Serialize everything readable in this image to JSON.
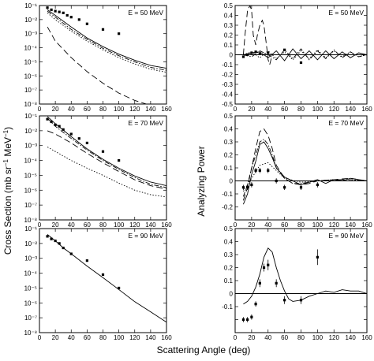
{
  "figure": {
    "xlabel": "Scattering Angle (deg)",
    "ylabel_left_main": "Cross Section (mb sr",
    "ylabel_left_exp": "−1",
    "ylabel_left_mid": " MeV",
    "ylabel_left_exp2": "−1",
    "ylabel_left_end": ")",
    "ylabel_right": "Analyzing Power"
  },
  "chart_data": [
    {
      "type": "line",
      "id": "cs50",
      "label": "E = 50 MeV",
      "ylog": true,
      "ylim": [
        1e-08,
        0.1
      ],
      "xlim": [
        0,
        160
      ],
      "xticks": [
        0,
        20,
        40,
        60,
        80,
        100,
        120,
        140,
        160
      ],
      "yticks": [
        1e-08,
        1e-07,
        1e-06,
        1e-05,
        0.0001,
        0.001,
        0.01,
        0.1
      ],
      "yticklabels": [
        "10⁻⁸",
        "10⁻⁷",
        "10⁻⁶",
        "10⁻⁵",
        "10⁻⁴",
        "10⁻³",
        "10⁻²",
        "10⁻¹"
      ],
      "series": [
        {
          "style": "solid",
          "x": [
            10,
            20,
            40,
            60,
            80,
            100,
            120,
            140,
            160
          ],
          "y": [
            0.05,
            0.02,
            0.003,
            0.0005,
            0.00012,
            3.5e-05,
            1.3e-05,
            5.5e-06,
            3.5e-06
          ]
        },
        {
          "style": "dashdot",
          "x": [
            10,
            20,
            40,
            60,
            80,
            100,
            120,
            140,
            160
          ],
          "y": [
            0.04,
            0.015,
            0.002,
            0.0004,
            9e-05,
            2.7e-05,
            1e-05,
            4e-06,
            2.5e-06
          ]
        },
        {
          "style": "dotted",
          "x": [
            10,
            20,
            40,
            60,
            80,
            100,
            120,
            140,
            160
          ],
          "y": [
            0.03,
            0.01,
            0.0015,
            0.0003,
            7e-05,
            2e-05,
            7e-06,
            3e-06,
            1.8e-06
          ]
        },
        {
          "style": "dashed",
          "x": [
            10,
            20,
            40,
            60,
            80,
            100,
            120,
            140,
            160
          ],
          "y": [
            0.003,
            0.0003,
            2e-05,
            2e-06,
            3e-07,
            6e-08,
            1.8e-08,
            8e-09,
            6e-09
          ]
        }
      ],
      "points": {
        "x": [
          10,
          15,
          20,
          25,
          30,
          35,
          40,
          50,
          60,
          80,
          100
        ],
        "y": [
          0.07,
          0.05,
          0.04,
          0.035,
          0.03,
          0.02,
          0.015,
          0.01,
          0.005,
          0.002,
          0.001
        ]
      }
    },
    {
      "type": "line",
      "id": "ap50",
      "label": "E = 50 MeV",
      "ylim": [
        -0.5,
        0.5
      ],
      "xlim": [
        0,
        160
      ],
      "xticks": [
        0,
        20,
        40,
        60,
        80,
        100,
        120,
        140,
        160
      ],
      "yticks": [
        -0.5,
        -0.4,
        -0.3,
        -0.2,
        -0.1,
        0,
        0.1,
        0.2,
        0.3,
        0.4,
        0.5
      ],
      "yticklabels": [
        "-0.5",
        "-0.4",
        "-0.3",
        "-0.2",
        "-0.1",
        "0",
        "0.1",
        "0.2",
        "0.3",
        "0.4",
        "0.5"
      ],
      "series": [
        {
          "style": "dashed",
          "x": [
            10,
            12,
            15,
            18,
            20,
            22,
            25,
            27,
            30,
            33,
            35,
            38,
            40,
            42,
            45,
            50,
            60
          ],
          "y": [
            0,
            0.2,
            0.45,
            0.5,
            0.45,
            0.2,
            0.1,
            0.2,
            0.3,
            0.35,
            0.3,
            0.1,
            -0.05,
            -0.1,
            0,
            0,
            0
          ]
        },
        {
          "style": "solid",
          "x": [
            10,
            20,
            30,
            40,
            50,
            60,
            70,
            80,
            90,
            100,
            110,
            120,
            130,
            140,
            150,
            160
          ],
          "y": [
            0,
            0.02,
            0.03,
            -0.03,
            0.04,
            -0.06,
            0.06,
            -0.04,
            0.04,
            -0.05,
            0.04,
            -0.04,
            0.03,
            -0.03,
            0.02,
            0
          ]
        },
        {
          "style": "dashdot",
          "x": [
            10,
            20,
            30,
            40,
            50,
            60,
            70,
            80,
            90,
            100,
            110,
            120,
            130,
            140,
            150,
            160
          ],
          "y": [
            0,
            -0.02,
            0.04,
            0,
            -0.05,
            0.05,
            -0.04,
            0.06,
            -0.05,
            0.04,
            -0.04,
            0.05,
            -0.03,
            0.03,
            -0.02,
            0
          ]
        },
        {
          "style": "dotted",
          "x": [
            10,
            20,
            30,
            40,
            50,
            60,
            70,
            80,
            90,
            100,
            110,
            120,
            130,
            140,
            150,
            160
          ],
          "y": [
            0,
            0.03,
            -0.03,
            0.04,
            -0.04,
            0.03,
            -0.05,
            0.04,
            -0.04,
            0.05,
            -0.03,
            0.04,
            -0.02,
            0.03,
            -0.02,
            0
          ]
        }
      ],
      "points": {
        "x": [
          10,
          15,
          20,
          25,
          30,
          40,
          60,
          80
        ],
        "y": [
          -0.02,
          0,
          0.02,
          0.03,
          0.01,
          0.02,
          0.05,
          -0.08
        ]
      }
    },
    {
      "type": "line",
      "id": "cs70",
      "label": "E = 70 MeV",
      "ylog": true,
      "ylim": [
        1e-08,
        0.1
      ],
      "xlim": [
        0,
        160
      ],
      "xticks": [
        0,
        20,
        40,
        60,
        80,
        100,
        120,
        140,
        160
      ],
      "yticks": [
        1e-08,
        1e-07,
        1e-06,
        1e-05,
        0.0001,
        0.001,
        0.01,
        0.1
      ],
      "yticklabels": [
        "10⁻⁸",
        "10⁻⁷",
        "10⁻⁶",
        "10⁻⁵",
        "10⁻⁴",
        "10⁻³",
        "10⁻²",
        "10⁻¹"
      ],
      "series": [
        {
          "style": "solid",
          "x": [
            10,
            20,
            40,
            60,
            80,
            100,
            120,
            140,
            160
          ],
          "y": [
            0.09,
            0.03,
            0.004,
            0.0006,
            0.00012,
            3e-05,
            9e-06,
            3.5e-06,
            2e-06
          ]
        },
        {
          "style": "dashdot",
          "x": [
            10,
            20,
            40,
            60,
            80,
            100,
            120,
            140,
            160
          ],
          "y": [
            0.07,
            0.02,
            0.003,
            0.0005,
            0.0001,
            2.5e-05,
            7e-06,
            2.5e-06,
            1.5e-06
          ]
        },
        {
          "style": "dashed",
          "x": [
            10,
            20,
            40,
            60,
            80,
            100,
            120,
            140,
            160
          ],
          "y": [
            0.01,
            0.006,
            0.0015,
            0.0003,
            7e-05,
            1.8e-05,
            5e-06,
            2e-06,
            1.2e-06
          ]
        },
        {
          "style": "dotted",
          "x": [
            10,
            20,
            40,
            60,
            80,
            100,
            120,
            140,
            160
          ],
          "y": [
            0.0008,
            0.0004,
            0.0001,
            3e-05,
            1e-05,
            3e-06,
            1e-06,
            5e-07,
            3.5e-07
          ]
        }
      ],
      "points": {
        "x": [
          10,
          15,
          20,
          25,
          30,
          40,
          50,
          60,
          80,
          100
        ],
        "y": [
          0.06,
          0.04,
          0.025,
          0.02,
          0.012,
          0.006,
          0.003,
          0.0015,
          0.0004,
          0.0001
        ]
      }
    },
    {
      "type": "line",
      "id": "ap70",
      "label": "E = 70 MeV",
      "ylim": [
        -0.3,
        0.5
      ],
      "xlim": [
        0,
        160
      ],
      "xticks": [
        0,
        20,
        40,
        60,
        80,
        100,
        120,
        140,
        160
      ],
      "yticks": [
        -0.3,
        -0.2,
        -0.1,
        0,
        0.1,
        0.2,
        0.3,
        0.4,
        0.5
      ],
      "yticklabels": [
        "",
        "-0.2",
        "-0.1",
        "0",
        "0.1",
        "0.2",
        "0.3",
        "0.4",
        "0.5"
      ],
      "series": [
        {
          "style": "dashed",
          "x": [
            10,
            15,
            20,
            25,
            30,
            35,
            40,
            45,
            50,
            60,
            70,
            80,
            90,
            100,
            120,
            140,
            160
          ],
          "y": [
            -0.15,
            -0.05,
            0.1,
            0.25,
            0.38,
            0.4,
            0.35,
            0.25,
            0.12,
            0.02,
            -0.02,
            -0.03,
            -0.02,
            0,
            0.01,
            0.02,
            0
          ]
        },
        {
          "style": "dashdot",
          "x": [
            10,
            15,
            20,
            25,
            30,
            35,
            40,
            45,
            50,
            60,
            70,
            80,
            90,
            100,
            120,
            140,
            160
          ],
          "y": [
            -0.12,
            -0.03,
            0.1,
            0.2,
            0.3,
            0.32,
            0.28,
            0.2,
            0.1,
            0.02,
            -0.02,
            -0.02,
            -0.01,
            0,
            0.01,
            0.01,
            0
          ]
        },
        {
          "style": "solid",
          "x": [
            10,
            15,
            20,
            25,
            30,
            35,
            40,
            45,
            50,
            60,
            70,
            80,
            90,
            100,
            110,
            120,
            130,
            140,
            150,
            160
          ],
          "y": [
            -0.18,
            -0.1,
            0.05,
            0.15,
            0.28,
            0.3,
            0.25,
            0.18,
            0.1,
            0.03,
            0,
            -0.03,
            -0.01,
            0.01,
            -0.02,
            0.01,
            0,
            0.02,
            0.01,
            0
          ]
        },
        {
          "style": "dotted",
          "x": [
            10,
            20,
            30,
            40,
            50,
            60,
            80,
            100,
            120,
            140,
            160
          ],
          "y": [
            -0.08,
            0.02,
            0.12,
            0.14,
            0.08,
            0.02,
            -0.01,
            0,
            0.01,
            0.01,
            0
          ]
        }
      ],
      "points": {
        "x": [
          10,
          15,
          20,
          25,
          30,
          40,
          50,
          60,
          80,
          100
        ],
        "y": [
          -0.05,
          -0.05,
          -0.03,
          0.08,
          0.08,
          0.08,
          0,
          -0.05,
          -0.05,
          -0.03
        ],
        "err": [
          0.02,
          0.02,
          0.02,
          0.02,
          0.02,
          0.02,
          0.02,
          0.02,
          0.02,
          0.02
        ]
      }
    },
    {
      "type": "line",
      "id": "cs90",
      "label": "E = 90 MeV",
      "ylog": true,
      "ylim": [
        1e-08,
        0.1
      ],
      "xlim": [
        0,
        160
      ],
      "xticks": [
        0,
        20,
        40,
        60,
        80,
        100,
        120,
        140,
        160
      ],
      "yticks": [
        1e-08,
        1e-07,
        1e-06,
        1e-05,
        0.0001,
        0.001,
        0.01,
        0.1
      ],
      "yticklabels": [
        "10⁻⁸",
        "10⁻⁷",
        "10⁻⁶",
        "10⁻⁵",
        "10⁻⁴",
        "10⁻³",
        "10⁻²",
        "10⁻¹"
      ],
      "series": [
        {
          "style": "solid",
          "x": [
            10,
            20,
            30,
            40,
            60,
            80,
            100,
            120,
            140,
            160
          ],
          "y": [
            0.04,
            0.015,
            0.005,
            0.002,
            0.0003,
            5e-05,
            8e-06,
            1.2e-06,
            2.5e-07,
            5e-08
          ]
        }
      ],
      "points": {
        "x": [
          10,
          15,
          20,
          25,
          30,
          40,
          60,
          80,
          100
        ],
        "y": [
          0.03,
          0.02,
          0.015,
          0.01,
          0.005,
          0.002,
          0.0007,
          8e-05,
          1e-05
        ]
      }
    },
    {
      "type": "line",
      "id": "ap90",
      "label": "E = 90 MeV",
      "ylim": [
        -0.3,
        0.5
      ],
      "xlim": [
        0,
        160
      ],
      "xticks": [
        0,
        20,
        40,
        60,
        80,
        100,
        120,
        140,
        160
      ],
      "yticks": [
        -0.3,
        -0.2,
        -0.1,
        0,
        0.1,
        0.2,
        0.3,
        0.4,
        0.5
      ],
      "yticklabels": [
        "",
        "",
        "-0.1",
        "0",
        "0.1",
        "0.2",
        "0.3",
        "0.4",
        "0.5"
      ],
      "series": [
        {
          "style": "solid",
          "x": [
            10,
            15,
            20,
            25,
            30,
            35,
            40,
            45,
            50,
            55,
            60,
            65,
            70,
            80,
            90,
            100,
            110,
            120,
            130,
            140,
            150,
            160
          ],
          "y": [
            -0.08,
            -0.06,
            -0.02,
            0.05,
            0.15,
            0.28,
            0.35,
            0.32,
            0.2,
            0.1,
            0.02,
            -0.04,
            -0.06,
            -0.05,
            -0.02,
            0,
            0.02,
            0.01,
            0.03,
            0.02,
            0.02,
            0
          ]
        }
      ],
      "points": {
        "x": [
          10,
          15,
          20,
          25,
          30,
          35,
          40,
          50,
          60,
          80,
          100
        ],
        "y": [
          -0.2,
          -0.2,
          -0.18,
          -0.08,
          0.08,
          0.2,
          0.22,
          0.08,
          -0.05,
          -0.05,
          0.28
        ],
        "err": [
          0.02,
          0.02,
          0.02,
          0.02,
          0.03,
          0.03,
          0.04,
          0.03,
          0.03,
          0.03,
          0.06
        ]
      }
    }
  ]
}
